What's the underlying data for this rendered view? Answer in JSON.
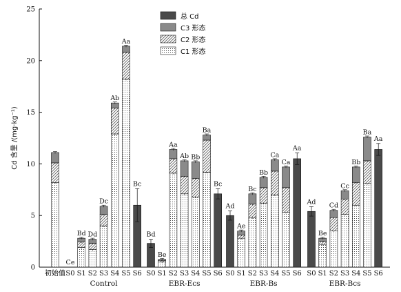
{
  "chart_data": {
    "type": "bar",
    "ylabel": "Cd 含量 /(mg·kg⁻¹)",
    "ylim": [
      0,
      25
    ],
    "yticks": [
      0,
      5,
      10,
      15,
      20,
      25
    ],
    "legend": [
      "总 Cd",
      "C3 形态",
      "C2 形态",
      "C1 形态"
    ],
    "legend_position": "top-center",
    "initial": {
      "label": "初始值",
      "c1": 8.2,
      "c2": 1.9,
      "c3": 1.0
    },
    "groups": [
      {
        "name": "Control",
        "bars": [
          {
            "label": "S0",
            "c1": 0,
            "c2": 0,
            "c3": 0,
            "total": 0,
            "sig": "Ce"
          },
          {
            "label": "S1",
            "c1": 1.9,
            "c2": 0.55,
            "c3": 0.35,
            "total": null,
            "sig": "Bd"
          },
          {
            "label": "S2",
            "c1": 1.7,
            "c2": 0.6,
            "c3": 0.4,
            "total": null,
            "sig": "Dd"
          },
          {
            "label": "S3",
            "c1": 4.0,
            "c2": 1.1,
            "c3": 0.8,
            "total": null,
            "sig": "Dc"
          },
          {
            "label": "S4",
            "c1": 12.9,
            "c2": 2.5,
            "c3": 0.5,
            "total": null,
            "sig": "Ab"
          },
          {
            "label": "S5",
            "c1": 18.2,
            "c2": 2.6,
            "c3": 0.6,
            "total": null,
            "sig": "Aa"
          },
          {
            "label": "S6",
            "c1": 0,
            "c2": 0,
            "c3": 0,
            "total": 6.0,
            "sig": "Bc"
          }
        ]
      },
      {
        "name": "EBR-Ecs",
        "bars": [
          {
            "label": "S0",
            "c1": 0,
            "c2": 0,
            "c3": 0,
            "total": 2.3,
            "sig": "Bd"
          },
          {
            "label": "S1",
            "c1": 0.5,
            "c2": 0.15,
            "c3": 0.1,
            "total": null,
            "sig": "Be"
          },
          {
            "label": "S2",
            "c1": 9.1,
            "c2": 1.4,
            "c3": 0.9,
            "total": null,
            "sig": "Aa"
          },
          {
            "label": "S3",
            "c1": 7.1,
            "c2": 1.7,
            "c3": 1.5,
            "total": null,
            "sig": "Ab"
          },
          {
            "label": "S4",
            "c1": 6.8,
            "c2": 1.8,
            "c3": 1.6,
            "total": null,
            "sig": "Bb"
          },
          {
            "label": "S5",
            "c1": 9.2,
            "c2": 3.1,
            "c3": 0.5,
            "total": null,
            "sig": "Ba"
          },
          {
            "label": "S6",
            "c1": 0,
            "c2": 0,
            "c3": 0,
            "total": 7.1,
            "sig": "Bc"
          }
        ]
      },
      {
        "name": "EBR-Bs",
        "bars": [
          {
            "label": "S0",
            "c1": 0,
            "c2": 0,
            "c3": 0,
            "total": 5.0,
            "sig": "Ad"
          },
          {
            "label": "S1",
            "c1": 2.8,
            "c2": 0.3,
            "c3": 0.4,
            "total": null,
            "sig": "Ae"
          },
          {
            "label": "S2",
            "c1": 4.8,
            "c2": 1.3,
            "c3": 1.0,
            "total": null,
            "sig": "Bc"
          },
          {
            "label": "S3",
            "c1": 6.2,
            "c2": 1.5,
            "c3": 1.0,
            "total": null,
            "sig": "Bb"
          },
          {
            "label": "S4",
            "c1": 7.0,
            "c2": 2.3,
            "c3": 1.1,
            "total": null,
            "sig": "Ca"
          },
          {
            "label": "S5",
            "c1": 5.3,
            "c2": 2.4,
            "c3": 2.0,
            "total": null,
            "sig": "Ca"
          },
          {
            "label": "S6",
            "c1": 0,
            "c2": 0,
            "c3": 0,
            "total": 10.5,
            "sig": "Aa"
          }
        ]
      },
      {
        "name": "EBR-Bcs",
        "bars": [
          {
            "label": "S0",
            "c1": 0,
            "c2": 0,
            "c3": 0,
            "total": 5.4,
            "sig": "Ad"
          },
          {
            "label": "S1",
            "c1": 2.2,
            "c2": 0.3,
            "c3": 0.3,
            "total": null,
            "sig": "Be"
          },
          {
            "label": "S2",
            "c1": 3.5,
            "c2": 1.3,
            "c3": 0.7,
            "total": null,
            "sig": "Cd"
          },
          {
            "label": "S3",
            "c1": 5.1,
            "c2": 1.5,
            "c3": 0.8,
            "total": null,
            "sig": "Cc"
          },
          {
            "label": "S4",
            "c1": 6.0,
            "c2": 2.2,
            "c3": 1.5,
            "total": null,
            "sig": "Bb"
          },
          {
            "label": "S5",
            "c1": 8.1,
            "c2": 2.2,
            "c3": 2.3,
            "total": null,
            "sig": "Ba"
          },
          {
            "label": "S6",
            "c1": 0,
            "c2": 0,
            "c3": 0,
            "total": 11.4,
            "sig": "Aa"
          }
        ]
      }
    ]
  },
  "colors": {
    "total": "#4a4a4a",
    "c3": "#8a8a8a",
    "c2_hatch": "#555555",
    "c1_dots": "#222222",
    "axis": "#111111"
  }
}
